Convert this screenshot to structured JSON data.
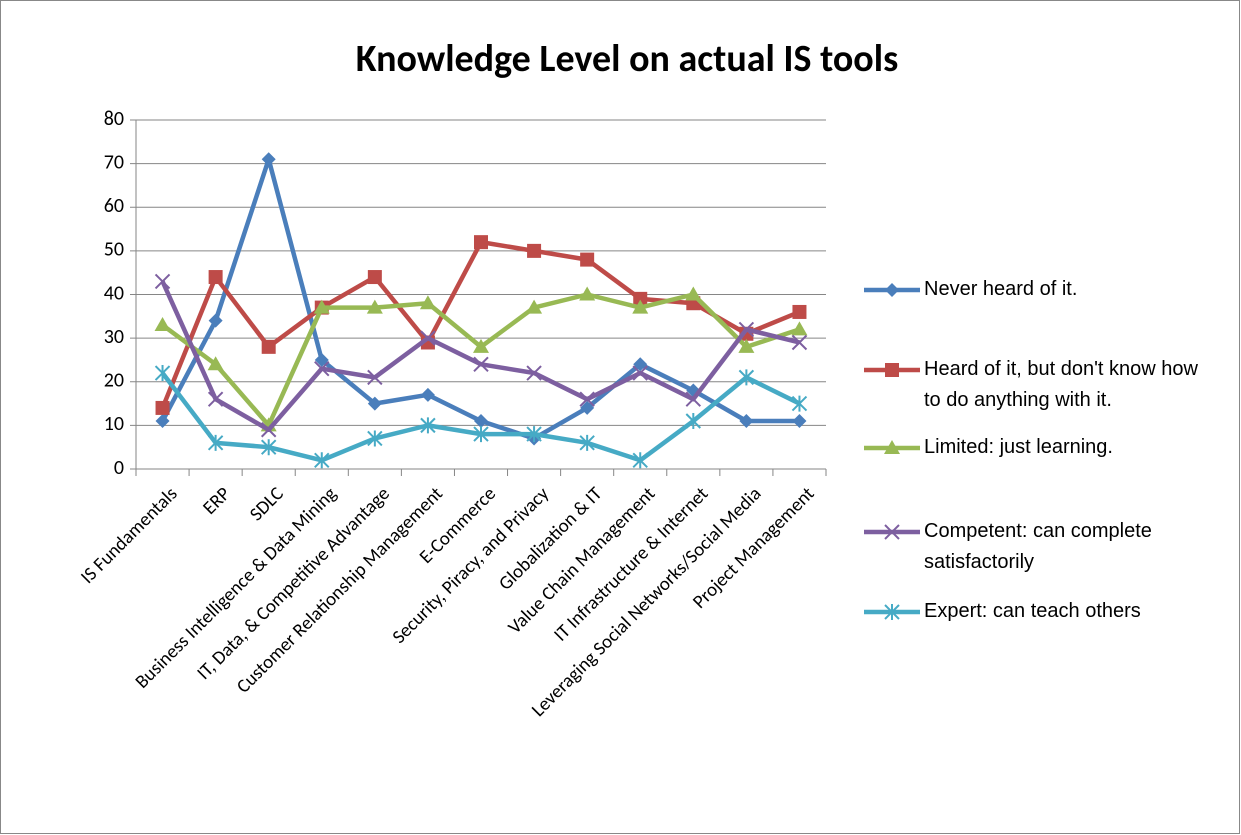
{
  "chart_data": {
    "type": "line",
    "title": "Knowledge Level on actual IS tools",
    "categories": [
      "IS Fundamentals",
      "ERP",
      "SDLC",
      "Business Intelligence & Data Mining",
      "IT, Data, & Competitive Advantage",
      "Customer Relationship Management",
      "E-Commerce",
      "Security, Piracy, and Privacy",
      "Globalization & IT",
      "Value Chain Management",
      "IT Infrastructure & Internet",
      "Leveraging Social Networks/Social Media",
      "Project Management"
    ],
    "series": [
      {
        "name": "Never heard of it.",
        "color": "#4a7ebb",
        "marker": "diamond",
        "values": [
          11,
          34,
          71,
          25,
          15,
          17,
          11,
          7,
          14,
          24,
          18,
          11,
          11
        ]
      },
      {
        "name": "Heard of it, but don't know how to do anything with it.",
        "color": "#be4b48",
        "marker": "square",
        "values": [
          14,
          44,
          28,
          37,
          44,
          29,
          52,
          50,
          48,
          39,
          38,
          31,
          36
        ]
      },
      {
        "name": "Limited: just learning.",
        "color": "#98b954",
        "marker": "triangle",
        "values": [
          33,
          24,
          10,
          37,
          37,
          38,
          28,
          37,
          40,
          37,
          40,
          28,
          32
        ]
      },
      {
        "name": "Competent: can complete satisfactorily",
        "color": "#7d5fa0",
        "marker": "x",
        "values": [
          43,
          16,
          9,
          23,
          21,
          30,
          24,
          22,
          16,
          22,
          16,
          32,
          29
        ]
      },
      {
        "name": "Expert: can teach others",
        "color": "#46aac5",
        "marker": "star",
        "values": [
          22,
          6,
          5,
          2,
          7,
          10,
          8,
          8,
          6,
          2,
          11,
          21,
          15
        ]
      }
    ],
    "ylim": [
      0,
      80
    ],
    "yticks": [
      0,
      10,
      20,
      30,
      40,
      50,
      60,
      70,
      80
    ],
    "grid": true,
    "legend": "right"
  }
}
